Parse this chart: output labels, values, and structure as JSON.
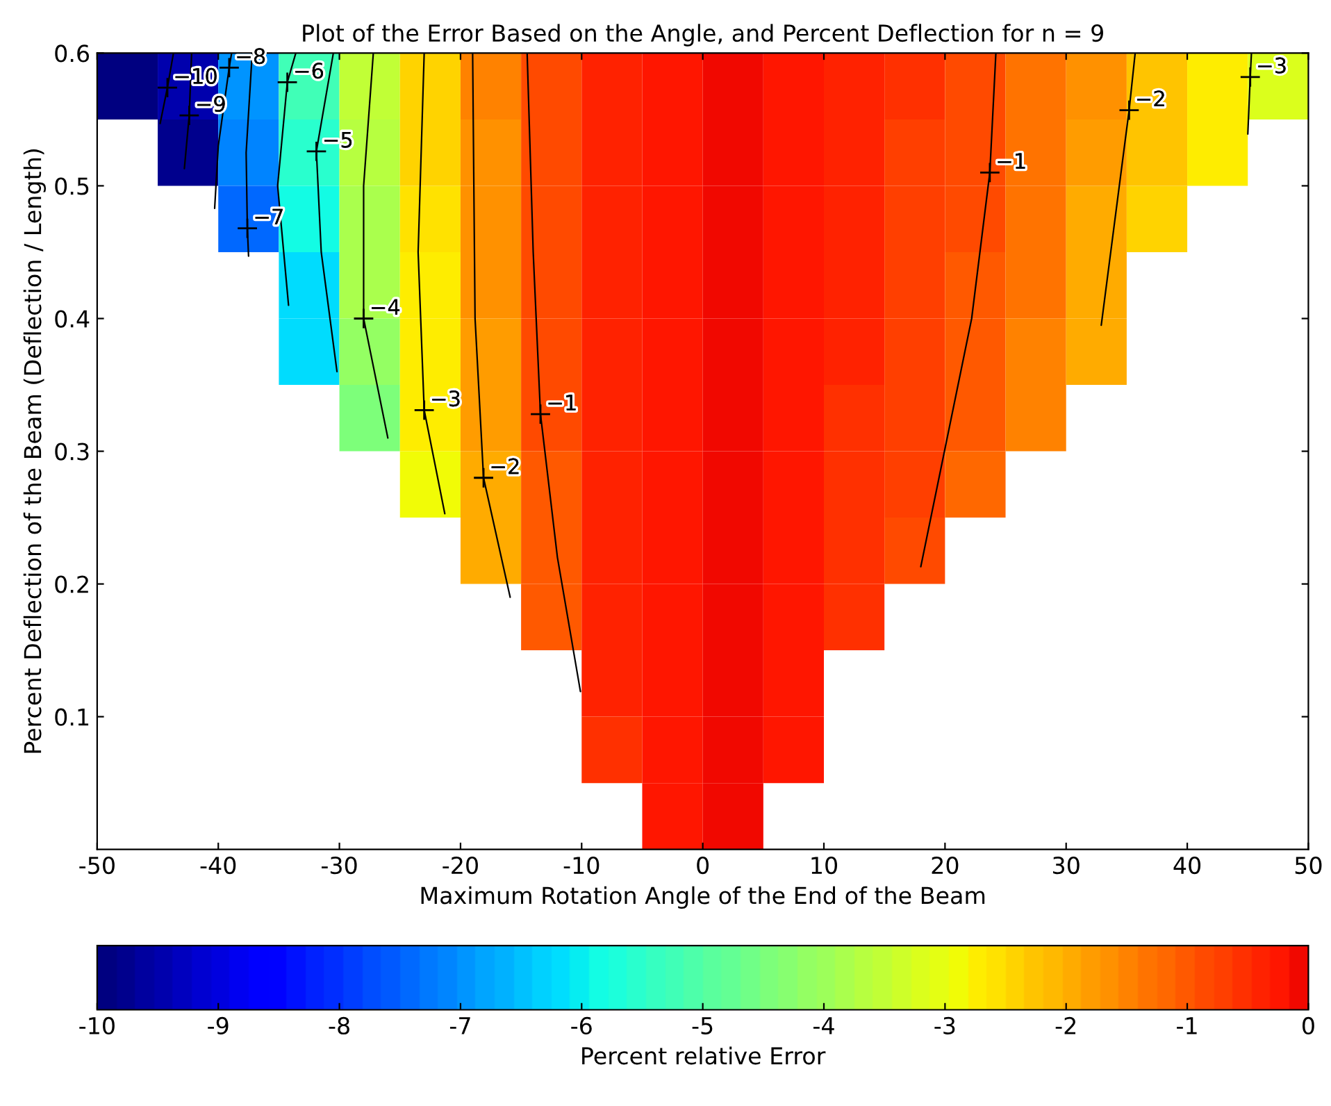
{
  "chart_data": {
    "type": "heatmap",
    "title": "Plot of the Error Based on the Angle, and Percent Deflection for n = 9",
    "xlabel": "Maximum Rotation Angle of the End of the Beam",
    "ylabel": "Percent Deflection of the Beam (Deflection / Length)",
    "clabel": "Percent relative Error",
    "x": [
      -47.5,
      -42.5,
      -37.5,
      -32.5,
      -27.5,
      -22.5,
      -17.5,
      -12.5,
      -7.5,
      -2.5,
      2.5,
      7.5,
      12.5,
      17.5,
      22.5,
      27.5,
      32.5,
      37.5,
      42.5,
      47.5
    ],
    "y": [
      0.575,
      0.525,
      0.475,
      0.425,
      0.375,
      0.325,
      0.275,
      0.225,
      0.175,
      0.125,
      0.075,
      0.025
    ],
    "xlim": [
      -50,
      50
    ],
    "xticks": [
      -50,
      -40,
      -30,
      -20,
      -10,
      0,
      10,
      20,
      30,
      40,
      50
    ],
    "ylim": [
      0,
      0.6
    ],
    "yticks": [
      0.1,
      0.2,
      0.3,
      0.4,
      0.5,
      0.6
    ],
    "clim": [
      -10,
      0
    ],
    "cticks": [
      -10,
      -9,
      -8,
      -7,
      -6,
      -5,
      -4,
      -3,
      -2,
      -1,
      0
    ],
    "cells": [
      [
        -11.0,
        -9.4,
        -6.9,
        -5.2,
        -3.5,
        -2.4,
        -1.5,
        -0.8,
        -0.4,
        -0.2,
        0.0,
        -0.2,
        -0.4,
        -0.6,
        -0.9,
        -1.3,
        -1.7,
        -2.2,
        -2.7,
        -3.2
      ],
      [
        null,
        -9.8,
        -7.1,
        -5.5,
        -3.6,
        -2.5,
        -1.6,
        -0.8,
        -0.4,
        -0.2,
        0.0,
        -0.2,
        -0.4,
        -0.7,
        -0.9,
        -1.3,
        -1.8,
        -2.3,
        -2.8,
        null
      ],
      [
        null,
        null,
        -7.5,
        -5.8,
        -3.8,
        -2.6,
        -1.6,
        -0.8,
        -0.4,
        -0.2,
        0.0,
        -0.2,
        -0.4,
        -0.7,
        -0.9,
        -1.4,
        -1.9,
        -2.4,
        null,
        null
      ],
      [
        null,
        null,
        null,
        -6.1,
        -3.9,
        -2.7,
        -1.7,
        -0.9,
        -0.4,
        -0.2,
        0.0,
        -0.2,
        -0.4,
        -0.7,
        -1.0,
        -1.4,
        -1.9,
        null,
        null,
        null
      ],
      [
        null,
        null,
        null,
        -6.2,
        -4.1,
        -2.7,
        -1.8,
        -0.9,
        -0.4,
        -0.2,
        0.0,
        -0.2,
        -0.4,
        -0.7,
        -1.0,
        -1.5,
        -2.0,
        null,
        null,
        null
      ],
      [
        null,
        null,
        null,
        null,
        -4.4,
        -2.8,
        -1.8,
        -0.9,
        -0.4,
        -0.2,
        0.0,
        -0.2,
        -0.5,
        -0.7,
        -1.0,
        -1.5,
        null,
        null,
        null,
        null
      ],
      [
        null,
        null,
        null,
        null,
        null,
        -2.9,
        -1.9,
        -1.0,
        -0.4,
        -0.2,
        0.0,
        -0.2,
        -0.5,
        -0.7,
        -1.1,
        null,
        null,
        null,
        null,
        null
      ],
      [
        null,
        null,
        null,
        null,
        null,
        null,
        -1.9,
        -1.0,
        -0.4,
        -0.2,
        0.0,
        -0.2,
        -0.5,
        -0.8,
        null,
        null,
        null,
        null,
        null,
        null
      ],
      [
        null,
        null,
        null,
        null,
        null,
        null,
        null,
        -1.0,
        -0.4,
        -0.2,
        0.0,
        -0.2,
        -0.5,
        null,
        null,
        null,
        null,
        null,
        null,
        null
      ],
      [
        null,
        null,
        null,
        null,
        null,
        null,
        null,
        null,
        -0.4,
        -0.2,
        0.0,
        -0.2,
        null,
        null,
        null,
        null,
        null,
        null,
        null,
        null
      ],
      [
        null,
        null,
        null,
        null,
        null,
        null,
        null,
        null,
        -0.5,
        -0.2,
        0.0,
        -0.2,
        null,
        null,
        null,
        null,
        null,
        null,
        null,
        null
      ],
      [
        null,
        null,
        null,
        null,
        null,
        null,
        null,
        null,
        null,
        -0.2,
        0.0,
        null,
        null,
        null,
        null,
        null,
        null,
        null,
        null,
        null
      ]
    ],
    "series": [
      {
        "type": "line",
        "color": "#000000",
        "x": [
          -44.8,
          -44.2,
          -43.7
        ],
        "values": [
          0.547,
          0.574,
          0.6
        ]
      },
      {
        "type": "line",
        "color": "#000000",
        "x": [
          -42.8,
          -42.4,
          -42.2
        ],
        "values": [
          0.513,
          0.553,
          0.6
        ]
      },
      {
        "type": "line",
        "color": "#000000",
        "x": [
          -40.3,
          -40.0,
          -39.1,
          -38.9
        ],
        "values": [
          0.483,
          0.53,
          0.589,
          0.6
        ]
      },
      {
        "type": "line",
        "color": "#000000",
        "x": [
          -37.5,
          -37.6,
          -37.7,
          -37.2
        ],
        "values": [
          0.447,
          0.468,
          0.525,
          0.6
        ]
      },
      {
        "type": "line",
        "color": "#000000",
        "x": [
          -34.2,
          -35.1,
          -34.3,
          -33.6
        ],
        "values": [
          0.41,
          0.5,
          0.578,
          0.6
        ]
      },
      {
        "type": "line",
        "color": "#000000",
        "x": [
          -30.2,
          -31.5,
          -31.9,
          -30.5
        ],
        "values": [
          0.36,
          0.45,
          0.526,
          0.6
        ]
      },
      {
        "type": "line",
        "color": "#000000",
        "x": [
          -26.0,
          -28.0,
          -28.0,
          -27.2
        ],
        "values": [
          0.31,
          0.4,
          0.5,
          0.6
        ]
      },
      {
        "type": "line",
        "color": "#000000",
        "x": [
          -21.3,
          -23.0,
          -23.5,
          -23.0
        ],
        "values": [
          0.253,
          0.331,
          0.45,
          0.6
        ]
      },
      {
        "type": "line",
        "color": "#000000",
        "x": [
          -15.9,
          -18.1,
          -18.8,
          -19.0
        ],
        "values": [
          0.19,
          0.28,
          0.4,
          0.6
        ]
      },
      {
        "type": "line",
        "color": "#000000",
        "x": [
          -10.1,
          -12.0,
          -13.4,
          -14.0,
          -14.5
        ],
        "values": [
          0.119,
          0.22,
          0.328,
          0.45,
          0.6
        ]
      },
      {
        "type": "line",
        "color": "#000000",
        "x": [
          18.0,
          22.2,
          23.7,
          24.2
        ],
        "values": [
          0.213,
          0.4,
          0.51,
          0.6
        ]
      },
      {
        "type": "line",
        "color": "#000000",
        "x": [
          32.9,
          35.2,
          35.7
        ],
        "values": [
          0.395,
          0.557,
          0.6
        ]
      },
      {
        "type": "line",
        "color": "#000000",
        "x": [
          45.0,
          45.2,
          45.3
        ],
        "values": [
          0.539,
          0.582,
          0.6
        ]
      }
    ],
    "annotations": [
      {
        "text": "−10",
        "x": -44.2,
        "y": 0.574
      },
      {
        "text": "−9",
        "x": -42.4,
        "y": 0.553
      },
      {
        "text": "−8",
        "x": -39.1,
        "y": 0.589
      },
      {
        "text": "−7",
        "x": -37.6,
        "y": 0.468
      },
      {
        "text": "−6",
        "x": -34.3,
        "y": 0.578
      },
      {
        "text": "−5",
        "x": -31.9,
        "y": 0.526
      },
      {
        "text": "−4",
        "x": -28.0,
        "y": 0.4
      },
      {
        "text": "−3",
        "x": -23.0,
        "y": 0.331
      },
      {
        "text": "−2",
        "x": -18.1,
        "y": 0.28
      },
      {
        "text": "−1",
        "x": -13.4,
        "y": 0.328
      },
      {
        "text": "−1",
        "x": 23.7,
        "y": 0.51
      },
      {
        "text": "−2",
        "x": 35.2,
        "y": 0.557
      },
      {
        "text": "−3",
        "x": 45.2,
        "y": 0.582
      }
    ]
  }
}
